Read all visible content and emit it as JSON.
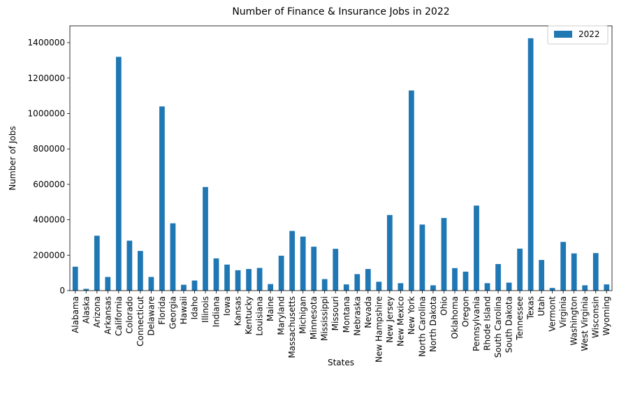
{
  "chart_data": {
    "type": "bar",
    "title": "Number of Finance & Insurance Jobs in 2022",
    "xlabel": "States",
    "ylabel": "Number of Jobs",
    "ylim": [
      0,
      1495000
    ],
    "yticks": [
      0,
      200000,
      400000,
      600000,
      800000,
      1000000,
      1200000,
      1400000
    ],
    "grid": false,
    "legend": "top-right",
    "color": "#1f77b4",
    "categories": [
      "Alabama",
      "Alaska",
      "Arizona",
      "Arkansas",
      "California",
      "Colorado",
      "Connecticut",
      "Delaware",
      "Florida",
      "Georgia",
      "Hawaii",
      "Idaho",
      "Illinois",
      "Indiana",
      "Iowa",
      "Kansas",
      "Kentucky",
      "Louisiana",
      "Maine",
      "Maryland",
      "Massachusetts",
      "Michigan",
      "Minnesota",
      "Mississippi",
      "Missouri",
      "Montana",
      "Nebraska",
      "Nevada",
      "New Hampshire",
      "New Jersey",
      "New Mexico",
      "New York",
      "North Carolina",
      "North Dakota",
      "Ohio",
      "Oklahoma",
      "Oregon",
      "Pennsylvania",
      "Rhode Island",
      "South Carolina",
      "South Dakota",
      "Tennessee",
      "Texas",
      "Utah",
      "Vermont",
      "Virginia",
      "Washington",
      "West Virginia",
      "Wisconsin",
      "Wyoming"
    ],
    "series": [
      {
        "name": "2022",
        "values": [
          135000,
          10000,
          310000,
          77000,
          1320000,
          282000,
          224000,
          77000,
          1040000,
          380000,
          33000,
          57000,
          585000,
          182000,
          147000,
          115000,
          122000,
          128000,
          37000,
          197000,
          337000,
          305000,
          248000,
          65000,
          236000,
          35000,
          93000,
          122000,
          50000,
          427000,
          42000,
          1130000,
          373000,
          30000,
          410000,
          127000,
          107000,
          480000,
          42000,
          150000,
          45000,
          237000,
          1425000,
          173000,
          15000,
          275000,
          210000,
          30000,
          212000,
          35000
        ]
      }
    ]
  }
}
